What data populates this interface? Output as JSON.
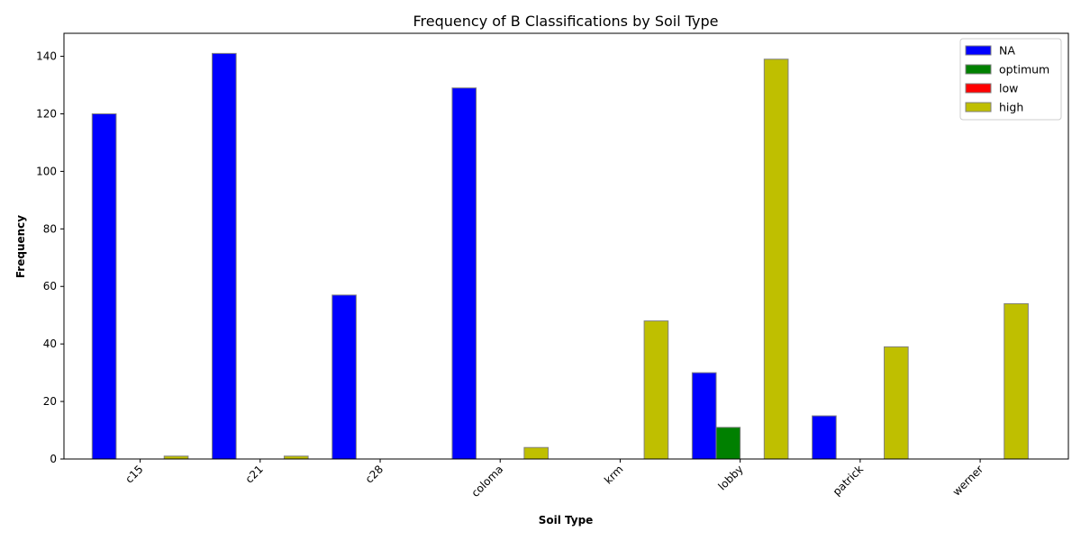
{
  "chart_data": {
    "type": "bar",
    "title": "Frequency of B Classifications by Soil Type",
    "xlabel": "Soil Type",
    "ylabel": "Frequency",
    "categories": [
      "c15",
      "c21",
      "c28",
      "coloma",
      "krm",
      "lobby",
      "patrick",
      "werner"
    ],
    "series": [
      {
        "name": "NA",
        "color": "#0000ff",
        "values": [
          120,
          141,
          57,
          129,
          0,
          30,
          15,
          0
        ]
      },
      {
        "name": "optimum",
        "color": "#008000",
        "values": [
          0,
          0,
          0,
          0,
          0,
          11,
          0,
          0
        ]
      },
      {
        "name": "low",
        "color": "#ff0000",
        "values": [
          0,
          0,
          0,
          0,
          0,
          0,
          0,
          0
        ]
      },
      {
        "name": "high",
        "color": "#bfbf00",
        "values": [
          1,
          1,
          0,
          4,
          48,
          139,
          39,
          54
        ]
      }
    ],
    "ylim": [
      0,
      148
    ],
    "yticks": [
      0,
      20,
      40,
      60,
      80,
      100,
      120,
      140
    ],
    "bar_edge_color": "#808080",
    "grid": false,
    "legend_position": "upper right"
  }
}
